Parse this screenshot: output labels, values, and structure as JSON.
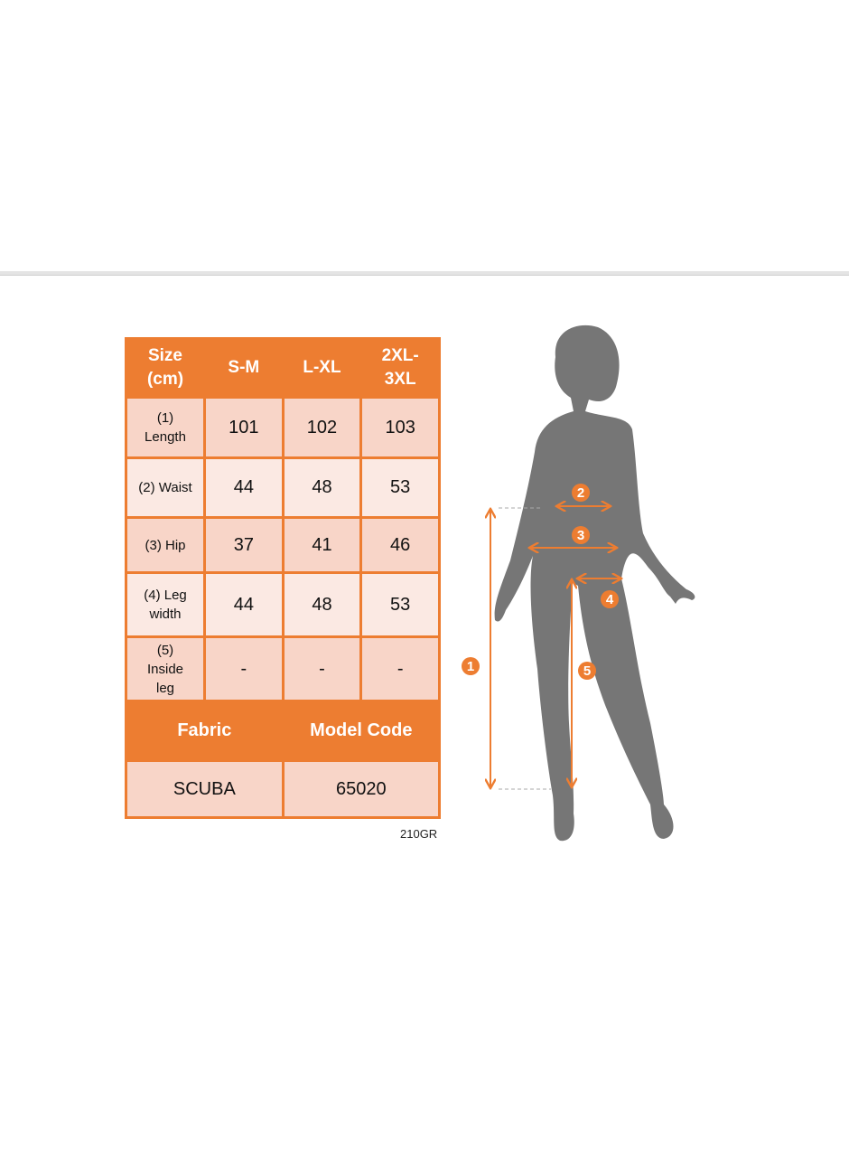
{
  "table": {
    "header": [
      "Size\n(cm)",
      "S-M",
      "L-XL",
      "2XL-\n3XL"
    ],
    "rows": [
      {
        "label": "(1)\nLength",
        "values": [
          "101",
          "102",
          "103"
        ]
      },
      {
        "label": "(2) Waist",
        "values": [
          "44",
          "48",
          "53"
        ]
      },
      {
        "label": "(3) Hip",
        "values": [
          "37",
          "41",
          "46"
        ]
      },
      {
        "label": "(4) Leg\nwidth",
        "values": [
          "44",
          "48",
          "53"
        ]
      },
      {
        "label": "(5)\nInside\nleg",
        "values": [
          "-",
          "-",
          "-"
        ]
      }
    ],
    "footer_headers": [
      "Fabric",
      "Model Code"
    ],
    "footer_values": [
      "SCUBA",
      "65020"
    ]
  },
  "product_code": "210GR",
  "figure": {
    "badges": [
      "1",
      "2",
      "3",
      "4",
      "5"
    ],
    "accent_color": "#ed7d31",
    "silhouette_color": "#767676"
  }
}
